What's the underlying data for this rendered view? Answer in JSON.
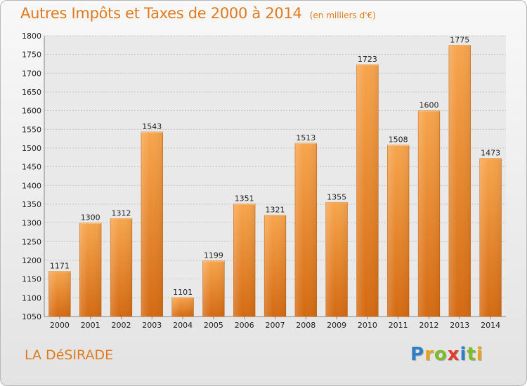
{
  "chart_data": {
    "type": "bar",
    "title": "Autres Impôts et Taxes de 2000 à 2014",
    "unit": "(en milliers d'€)",
    "categories": [
      "2000",
      "2001",
      "2002",
      "2003",
      "2004",
      "2005",
      "2006",
      "2007",
      "2008",
      "2009",
      "2010",
      "2011",
      "2012",
      "2013",
      "2014"
    ],
    "values": [
      1171,
      1300,
      1312,
      1543,
      1101,
      1199,
      1351,
      1321,
      1513,
      1355,
      1723,
      1508,
      1600,
      1775,
      1473
    ],
    "ylim": [
      1050,
      1800
    ],
    "yticks": [
      1050,
      1100,
      1150,
      1200,
      1250,
      1300,
      1350,
      1400,
      1450,
      1500,
      1550,
      1600,
      1650,
      1700,
      1750,
      1800
    ],
    "grid": true,
    "colors": {
      "bar_light": "#f7a54d",
      "bar_dark": "#d46a12",
      "text": "#e07a1e"
    }
  },
  "commune": "LA DéSIRADE",
  "logo": {
    "letters": [
      {
        "ch": "P",
        "color": "#2f7fc4"
      },
      {
        "ch": "r",
        "color": "#e8a21b"
      },
      {
        "ch": "o",
        "color": "#7cbb2a"
      },
      {
        "ch": "x",
        "color": "#e03c2c"
      },
      {
        "ch": "i",
        "color": "#2f7fc4"
      },
      {
        "ch": "t",
        "color": "#7cbb2a"
      },
      {
        "ch": "i",
        "color": "#e8a21b"
      }
    ]
  }
}
